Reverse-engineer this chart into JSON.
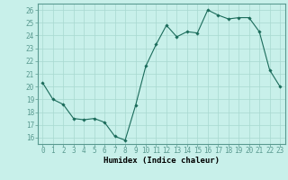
{
  "x": [
    0,
    1,
    2,
    3,
    4,
    5,
    6,
    7,
    8,
    9,
    10,
    11,
    12,
    13,
    14,
    15,
    16,
    17,
    18,
    19,
    20,
    21,
    22,
    23
  ],
  "y": [
    20.3,
    19.0,
    18.6,
    17.5,
    17.4,
    17.5,
    17.2,
    16.1,
    15.8,
    18.5,
    21.6,
    23.3,
    24.8,
    23.9,
    24.3,
    24.2,
    26.0,
    25.6,
    25.3,
    25.4,
    25.4,
    24.3,
    21.3,
    20.0
  ],
  "xlabel": "Humidex (Indice chaleur)",
  "ylim": [
    15.5,
    26.5
  ],
  "xlim": [
    -0.5,
    23.5
  ],
  "yticks": [
    16,
    17,
    18,
    19,
    20,
    21,
    22,
    23,
    24,
    25,
    26
  ],
  "xticks": [
    0,
    1,
    2,
    3,
    4,
    5,
    6,
    7,
    8,
    9,
    10,
    11,
    12,
    13,
    14,
    15,
    16,
    17,
    18,
    19,
    20,
    21,
    22,
    23
  ],
  "line_color": "#1a6b5a",
  "marker_color": "#1a6b5a",
  "bg_color": "#c8f0ea",
  "grid_color": "#a8d8d0",
  "spine_color": "#5a9a90",
  "tick_fontsize": 5.5,
  "xlabel_fontsize": 6.5
}
